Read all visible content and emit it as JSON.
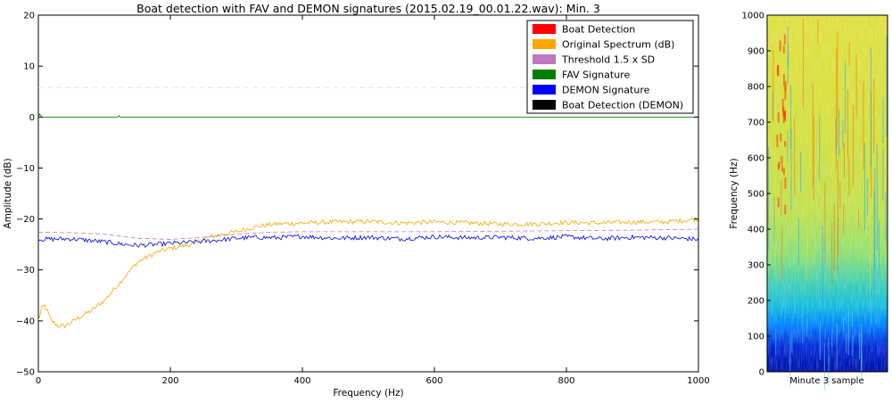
{
  "chart_data": [
    {
      "type": "line",
      "title": "Boat detection with FAV and DEMON signatures (2015.02.19_00.01.22.wav): Min. 3",
      "xlabel": "Frequency (Hz)",
      "ylabel": "Amplitude (dB)",
      "xlim": [
        0,
        1000
      ],
      "ylim": [
        -50,
        20
      ],
      "xticks": [
        "0",
        "200",
        "400",
        "600",
        "800",
        "1000"
      ],
      "yticks": [
        "20",
        "10",
        "0",
        "−10",
        "−20",
        "−30",
        "−40",
        "−50"
      ],
      "grid": false,
      "legend_position": "top-right",
      "legend": [
        {
          "label": "Boat Detection",
          "color": "#ff0000"
        },
        {
          "label": "Original Spectrum (dB)",
          "color": "#ffa500"
        },
        {
          "label": "Threshold 1.5 x SD",
          "color": "#bf77bf"
        },
        {
          "label": "FAV Signature",
          "color": "#008000"
        },
        {
          "label": "DEMON Signature",
          "color": "#0000ff"
        },
        {
          "label": "Boat Detection (DEMON)",
          "color": "#000000"
        }
      ],
      "series": [
        {
          "name": "Original Spectrum (dB)",
          "color": "#ffa500",
          "x": [
            0,
            5,
            10,
            20,
            30,
            40,
            60,
            80,
            100,
            120,
            150,
            180,
            200,
            230,
            260,
            300,
            330,
            360,
            400,
            450,
            500,
            550,
            600,
            650,
            700,
            750,
            800,
            850,
            900,
            950,
            1000
          ],
          "y": [
            -40,
            -37.5,
            -37,
            -40,
            -41,
            -41,
            -39.5,
            -38,
            -36,
            -33,
            -28.5,
            -26.5,
            -25.8,
            -25,
            -23.5,
            -22.5,
            -21.5,
            -21,
            -20.8,
            -20.6,
            -20.5,
            -20.8,
            -20.6,
            -20.8,
            -21,
            -21,
            -20.7,
            -20.8,
            -20.6,
            -20.6,
            -20
          ]
        },
        {
          "name": "Threshold 1.5 x SD",
          "color": "#bf77bf",
          "x": [
            0,
            50,
            100,
            150,
            200,
            250,
            300,
            350,
            400,
            500,
            600,
            700,
            800,
            900,
            1000
          ],
          "y": [
            -22.6,
            -22.7,
            -23.0,
            -23.8,
            -24.0,
            -23.6,
            -23.0,
            -22.6,
            -22.5,
            -22.5,
            -22.5,
            -22.4,
            -22.3,
            -22.2,
            -22.0
          ]
        },
        {
          "name": "FAV Signature",
          "color": "#008000",
          "x": [
            0,
            2,
            4,
            6,
            10,
            50,
            100,
            120,
            122,
            124,
            200,
            400,
            600,
            800,
            1000
          ],
          "y": [
            0,
            0.6,
            0.2,
            0,
            0,
            0,
            0,
            0,
            0.3,
            0,
            0,
            0,
            0,
            0,
            0
          ]
        },
        {
          "name": "DEMON Signature",
          "color": "#0000ff",
          "x": [
            0,
            50,
            100,
            130,
            150,
            180,
            200,
            230,
            260,
            300,
            330,
            360,
            400,
            450,
            500,
            550,
            600,
            650,
            700,
            750,
            800,
            850,
            900,
            950,
            1000
          ],
          "y": [
            -24,
            -23.9,
            -24.5,
            -25.0,
            -25.2,
            -25.0,
            -24.8,
            -24.6,
            -24.3,
            -23.8,
            -23.6,
            -23.7,
            -23.4,
            -23.8,
            -23.6,
            -23.9,
            -23.5,
            -23.7,
            -23.6,
            -23.8,
            -23.5,
            -23.9,
            -23.6,
            -23.7,
            -24.0
          ]
        }
      ],
      "reference_lines": [
        {
          "y": 5.8,
          "style": "dashed",
          "color": "#e4e4e4"
        }
      ]
    },
    {
      "type": "heatmap",
      "xlabel": "Minute 3 sample",
      "ylabel": "Frequency (Hz)",
      "ylim": [
        0,
        1000
      ],
      "yticks": [
        "0",
        "100",
        "200",
        "300",
        "400",
        "500",
        "600",
        "700",
        "800",
        "900",
        "1000"
      ],
      "colormap": "jet"
    }
  ]
}
